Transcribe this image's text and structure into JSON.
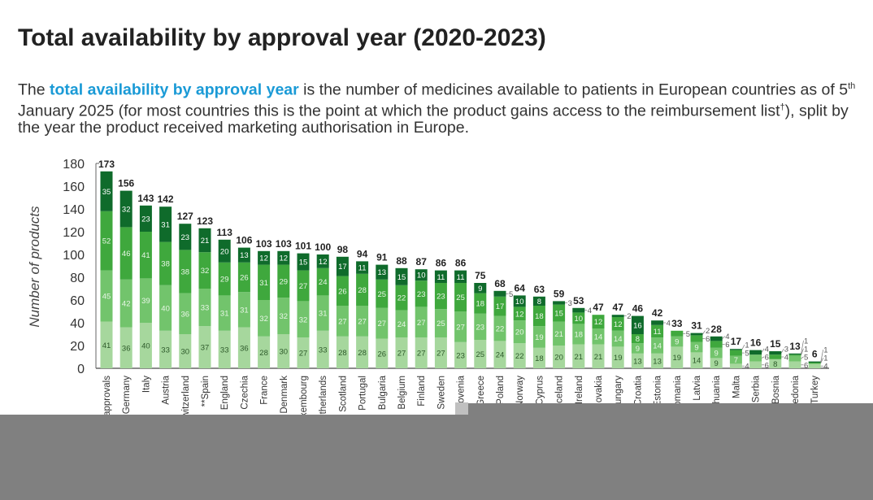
{
  "title": "Total availability by approval year (2020-2023)",
  "intro": {
    "before": "The ",
    "highlight": "total availability by approval year",
    "after1": " is the number of medicines available to patients in European countries as of 5",
    "sup": "th",
    "after2": " January 2025 (for most countries this is the point at which the product gains access to the reimbursement list",
    "dagger": "†",
    "after3": "), split by the year the product received marketing authorisation in Europe."
  },
  "colors": {
    "highlight": "#1a9ad6",
    "seg1": "#a6d79d",
    "seg2": "#72c46c",
    "seg3": "#3fa83d",
    "seg4": "#0f6b2b",
    "overlay": "#808080"
  },
  "chart_data": {
    "type": "bar",
    "stacked": true,
    "ylabel": "Number of products",
    "ylim": [
      0,
      180
    ],
    "yticks": [
      0,
      20,
      40,
      60,
      80,
      100,
      120,
      140,
      160,
      180
    ],
    "grid": false,
    "categories": [
      "approvals",
      "Germany",
      "Italy",
      "Austria",
      "witzerland",
      "**Spain",
      "England",
      "Czechia",
      "France",
      "Denmark",
      "uxembourg",
      "etherlands",
      "Scotland",
      "Portugal",
      "Bulgaria",
      "Belgium",
      "Finland",
      "Sweden",
      "Slovenia",
      "Greece",
      "Poland",
      "Norway",
      "Cyprus",
      "celand",
      "Ireland",
      "lovakia",
      "ungary",
      "Croatia",
      "Estonia",
      "omania",
      "Latvia",
      "huania",
      "Malta",
      "Serbia",
      "Bosnia",
      "edonia",
      "Turkey"
    ],
    "totals": [
      173,
      156,
      143,
      142,
      127,
      123,
      113,
      106,
      103,
      103,
      101,
      100,
      98,
      94,
      91,
      88,
      87,
      86,
      86,
      75,
      68,
      64,
      63,
      59,
      53,
      47,
      47,
      46,
      42,
      33,
      31,
      28,
      17,
      16,
      15,
      13,
      6
    ],
    "series": [
      {
        "values": [
          41,
          36,
          40,
          33,
          30,
          37,
          33,
          36,
          28,
          30,
          27,
          33,
          28,
          28,
          26,
          27,
          27,
          27,
          23,
          25,
          24,
          22,
          18,
          20,
          21,
          21,
          19,
          13,
          13,
          19,
          14,
          9,
          4,
          6,
          8,
          6,
          4
        ]
      },
      {
        "values": [
          45,
          42,
          39,
          40,
          36,
          33,
          31,
          31,
          32,
          32,
          32,
          31,
          27,
          27,
          27,
          24,
          27,
          25,
          27,
          23,
          22,
          20,
          19,
          21,
          18,
          14,
          14,
          9,
          14,
          9,
          9,
          9,
          7,
          6,
          0,
          5,
          0
        ]
      },
      {
        "values": [
          52,
          46,
          41,
          38,
          38,
          32,
          29,
          26,
          31,
          29,
          27,
          24,
          26,
          28,
          25,
          22,
          23,
          23,
          25,
          18,
          17,
          12,
          18,
          15,
          10,
          12,
          12,
          8,
          11,
          5,
          6,
          6,
          5,
          0,
          4,
          1,
          1
        ]
      },
      {
        "values": [
          35,
          32,
          23,
          31,
          23,
          21,
          20,
          13,
          12,
          12,
          15,
          12,
          17,
          11,
          13,
          15,
          10,
          11,
          11,
          9,
          5,
          10,
          8,
          3,
          4,
          0,
          2,
          16,
          4,
          0,
          2,
          4,
          1,
          4,
          3,
          1,
          1
        ]
      }
    ]
  }
}
